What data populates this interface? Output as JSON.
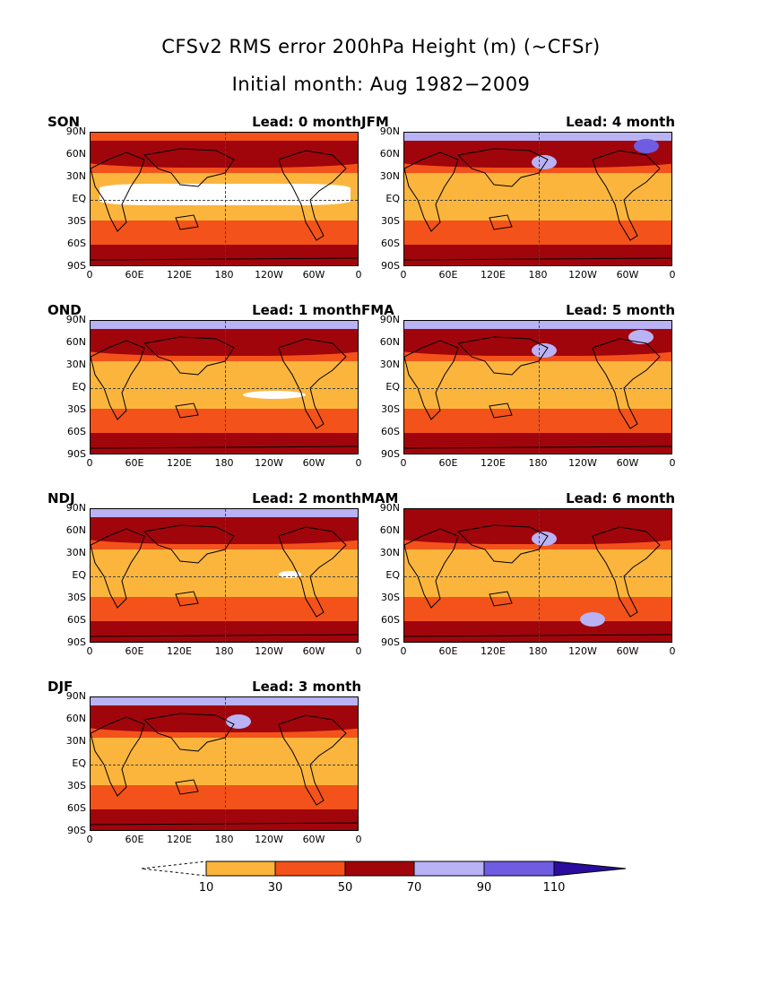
{
  "title_line1": "CFSv2 RMS error 200hPa Height (m) (~CFSr)",
  "title_line2": "Initial month: Aug 1982−2009",
  "colors": {
    "c10": "#fbb53d",
    "c30": "#f3521a",
    "c50": "#a0050c",
    "c70": "#b9b2f5",
    "c90": "#6f5ce0",
    "c110": "#2a0c9e",
    "below10": "#ffffff"
  },
  "y_ticks": [
    "90N",
    "60N",
    "30N",
    "EQ",
    "30S",
    "60S",
    "90S"
  ],
  "x_ticks": [
    "0",
    "60E",
    "120E",
    "180",
    "120W",
    "60W",
    "0"
  ],
  "panels": [
    {
      "season": "SON",
      "lead": "Lead: 0 month"
    },
    {
      "season": "JFM",
      "lead": "Lead: 4 month"
    },
    {
      "season": "OND",
      "lead": "Lead: 1 month"
    },
    {
      "season": "FMA",
      "lead": "Lead: 5 month"
    },
    {
      "season": "NDJ",
      "lead": "Lead: 2 month"
    },
    {
      "season": "MAM",
      "lead": "Lead: 6 month"
    },
    {
      "season": "DJF",
      "lead": "Lead: 3 month"
    }
  ],
  "colorbar": {
    "labels": [
      "10",
      "30",
      "50",
      "70",
      "90",
      "110"
    ]
  },
  "chart_data": {
    "type": "heatmap",
    "title": "CFSv2 RMS error 200hPa Height (m) (~CFSr)",
    "subtitle": "Initial month: Aug 1982−2009",
    "contour_levels": [
      10,
      30,
      50,
      70,
      90,
      110
    ],
    "xlim": [
      "0",
      "0"
    ],
    "ylim": [
      "90S",
      "90N"
    ]
  }
}
